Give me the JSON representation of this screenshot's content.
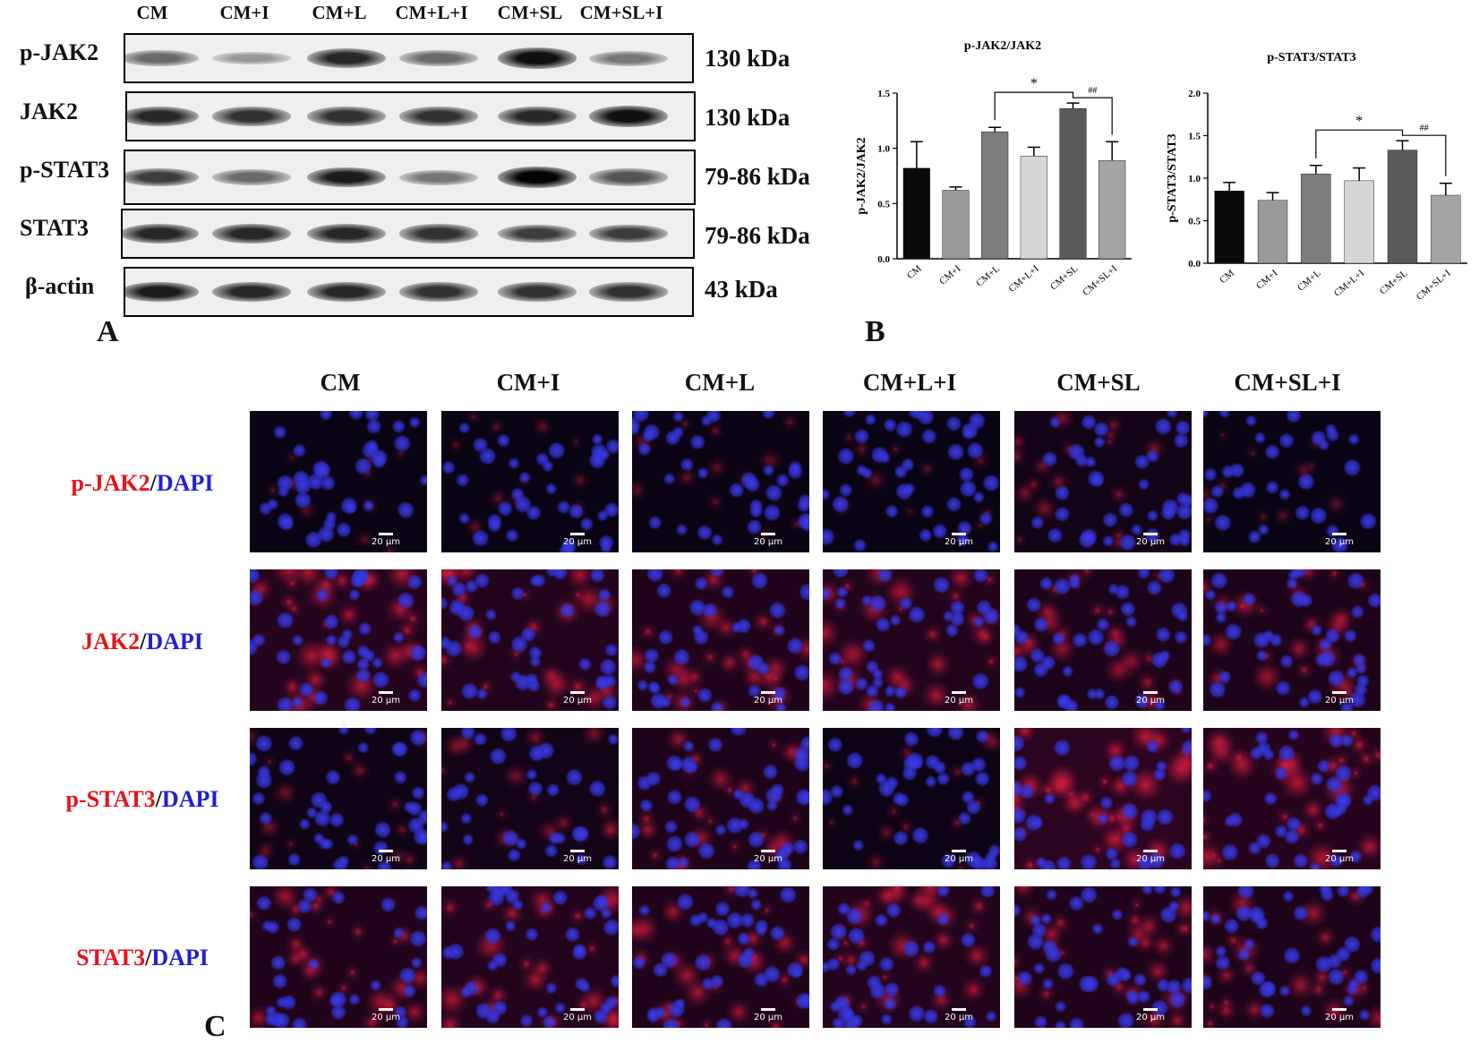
{
  "panelA": {
    "letter": "A",
    "lanes": [
      "CM",
      "CM+I",
      "CM+L",
      "CM+L+I",
      "CM+SL",
      "CM+SL+I"
    ],
    "rows": [
      {
        "label": "p-JAK2",
        "kda": "130 kDa",
        "intensity": [
          0.55,
          0.35,
          0.85,
          0.55,
          0.95,
          0.5
        ]
      },
      {
        "label": "JAK2",
        "kda": "130 kDa",
        "intensity": [
          0.85,
          0.8,
          0.8,
          0.8,
          0.85,
          0.95
        ]
      },
      {
        "label": "p-STAT3",
        "kda": "79-86 kDa",
        "intensity": [
          0.75,
          0.55,
          0.9,
          0.5,
          1.0,
          0.65
        ]
      },
      {
        "label": "STAT3",
        "kda": "79-86 kDa",
        "intensity": [
          0.85,
          0.85,
          0.85,
          0.8,
          0.75,
          0.75
        ]
      },
      {
        "label": "β-actin",
        "kda": "43 kDa",
        "intensity": [
          0.9,
          0.85,
          0.85,
          0.8,
          0.8,
          0.8
        ]
      }
    ]
  },
  "panelB": {
    "letter": "B",
    "chart_data": [
      {
        "type": "bar",
        "title": "p-JAK2/JAK2",
        "ylabel": "p-JAK2/JAK2",
        "categories": [
          "CM",
          "CM+I",
          "CM+L",
          "CM+L+I",
          "CM+SL",
          "CM+SL+I"
        ],
        "values": [
          0.82,
          0.62,
          1.15,
          0.93,
          1.36,
          0.89
        ],
        "errors": [
          0.24,
          0.03,
          0.04,
          0.08,
          0.05,
          0.17
        ],
        "colors": [
          "#0a0a0a",
          "#9a9a9a",
          "#7d7d7d",
          "#d6d6d6",
          "#5a5a5a",
          "#a4a4a4"
        ],
        "ylim": [
          0,
          1.5
        ],
        "yticks": [
          "0.0",
          "0.5",
          "1.0",
          "1.5"
        ],
        "annotations": [
          {
            "from": 2,
            "to": 4,
            "label": "*"
          },
          {
            "from": 4,
            "to": 5,
            "label": "##"
          }
        ]
      },
      {
        "type": "bar",
        "title": "p-STAT3/STAT3",
        "ylabel": "p-STAT3/STAT3",
        "categories": [
          "CM",
          "CM+I",
          "CM+L",
          "CM+L+I",
          "CM+SL",
          "CM+SL+I"
        ],
        "values": [
          0.85,
          0.74,
          1.05,
          0.97,
          1.33,
          0.8
        ],
        "errors": [
          0.1,
          0.09,
          0.1,
          0.15,
          0.11,
          0.14
        ],
        "colors": [
          "#0a0a0a",
          "#9a9a9a",
          "#7d7d7d",
          "#d6d6d6",
          "#5a5a5a",
          "#a4a4a4"
        ],
        "ylim": [
          0,
          2.0
        ],
        "yticks": [
          "0.0",
          "0.5",
          "1.0",
          "1.5",
          "2.0"
        ],
        "annotations": [
          {
            "from": 2,
            "to": 4,
            "label": "*"
          },
          {
            "from": 4,
            "to": 5,
            "label": "##"
          }
        ]
      }
    ]
  },
  "panelC": {
    "letter": "C",
    "columns": [
      "CM",
      "CM+I",
      "CM+L",
      "CM+L+I",
      "CM+SL",
      "CM+SL+I"
    ],
    "rows": [
      {
        "marker": "p-JAK2",
        "counter": "DAPI",
        "red_level": [
          0.1,
          0.1,
          0.15,
          0.12,
          0.3,
          0.1
        ]
      },
      {
        "marker": "JAK2",
        "counter": "DAPI",
        "red_level": [
          0.7,
          0.65,
          0.6,
          0.65,
          0.5,
          0.55
        ]
      },
      {
        "marker": "p-STAT3",
        "counter": "DAPI",
        "red_level": [
          0.25,
          0.3,
          0.55,
          0.2,
          0.85,
          0.75
        ]
      },
      {
        "marker": "STAT3",
        "counter": "DAPI",
        "red_level": [
          0.6,
          0.65,
          0.6,
          0.65,
          0.6,
          0.55
        ]
      }
    ],
    "scale_label": "20 μm"
  }
}
